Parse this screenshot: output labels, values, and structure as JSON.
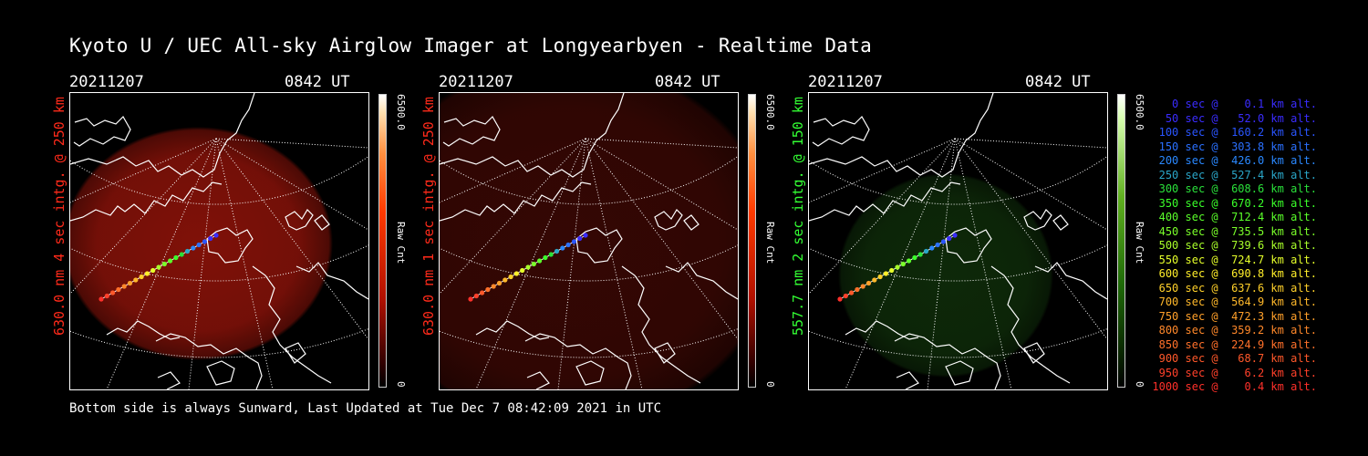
{
  "title": "Kyoto U / UEC All-sky Airglow Imager at Longyearbyen - Realtime Data",
  "panels": [
    {
      "date": "20211207",
      "time": "0842 UT",
      "ylabel": "630.0 nm 4 sec intg. @ 250 km",
      "ylabel_color": "#ff2a1a",
      "cbar_max": "6500.0",
      "cbar_min": "0",
      "cbar_label": "Raw Cnt",
      "scheme": "red",
      "glow": 0.85
    },
    {
      "date": "20211207",
      "time": "0842 UT",
      "ylabel": "630.0 nm 1 sec intg. @ 250 km",
      "ylabel_color": "#ff2a1a",
      "cbar_max": "6500.0",
      "cbar_min": "0",
      "cbar_label": "Raw Cnt",
      "scheme": "red",
      "glow": 0.35
    },
    {
      "date": "20211207",
      "time": "0842 UT",
      "ylabel": "557.7 nm 2 sec intg. @ 150 km",
      "ylabel_color": "#33ff33",
      "cbar_max": "6500.0",
      "cbar_min": "0",
      "cbar_label": "Raw Cnt",
      "scheme": "green",
      "glow": 0.45
    }
  ],
  "legend": [
    {
      "text": "   0 sec @    0.1 km alt.",
      "color": "#3a2cff"
    },
    {
      "text": "  50 sec @   52.0 km alt.",
      "color": "#3a2cff"
    },
    {
      "text": " 100 sec @  160.2 km alt.",
      "color": "#2a55ff"
    },
    {
      "text": " 150 sec @  303.8 km alt.",
      "color": "#2a70ff"
    },
    {
      "text": " 200 sec @  426.0 km alt.",
      "color": "#2a88ff"
    },
    {
      "text": " 250 sec @  527.4 km alt.",
      "color": "#2aa6c8"
    },
    {
      "text": " 300 sec @  608.6 km alt.",
      "color": "#2ae03a"
    },
    {
      "text": " 350 sec @  670.2 km alt.",
      "color": "#3aff2a"
    },
    {
      "text": " 400 sec @  712.4 km alt.",
      "color": "#5aff2a"
    },
    {
      "text": " 450 sec @  735.5 km alt.",
      "color": "#7aff2a"
    },
    {
      "text": " 500 sec @  739.6 km alt.",
      "color": "#a8ff2a"
    },
    {
      "text": " 550 sec @  724.7 km alt.",
      "color": "#e6ff2a"
    },
    {
      "text": " 600 sec @  690.8 km alt.",
      "color": "#ffee2a"
    },
    {
      "text": " 650 sec @  637.6 km alt.",
      "color": "#ffd02a"
    },
    {
      "text": " 700 sec @  564.9 km alt.",
      "color": "#ffb82a"
    },
    {
      "text": " 750 sec @  472.3 km alt.",
      "color": "#ffa02a"
    },
    {
      "text": " 800 sec @  359.2 km alt.",
      "color": "#ff882a"
    },
    {
      "text": " 850 sec @  224.9 km alt.",
      "color": "#ff702a"
    },
    {
      "text": " 900 sec @   68.7 km alt.",
      "color": "#ff582a"
    },
    {
      "text": " 950 sec @    6.2 km alt.",
      "color": "#ff402a"
    },
    {
      "text": "1000 sec @    0.4 km alt.",
      "color": "#ff302a"
    }
  ],
  "footer": "Bottom side is always Sunward, Last Updated at Tue Dec  7 08:42:09 2021 in UTC"
}
